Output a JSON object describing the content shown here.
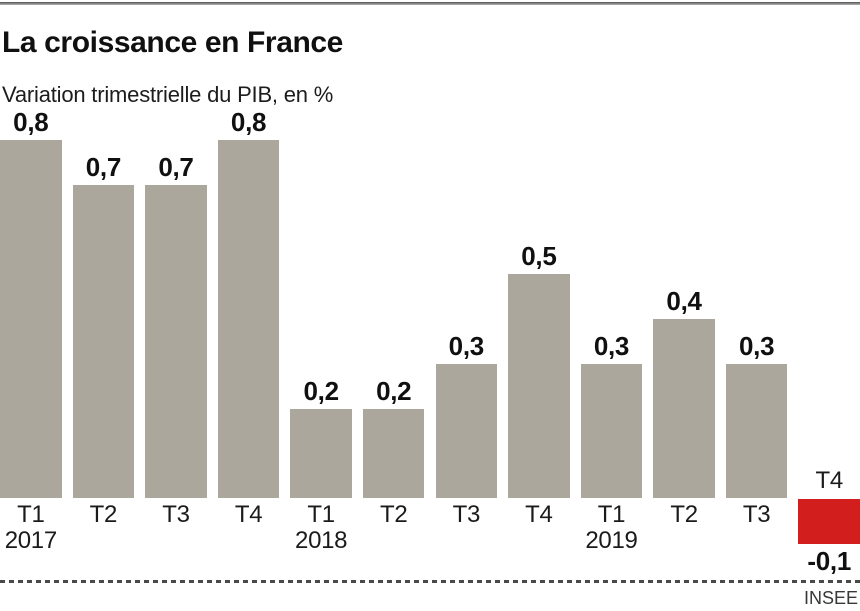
{
  "header": {
    "title": "La croissance en France",
    "subtitle": "Variation trimestrielle du PIB, en %"
  },
  "source_label": "INSEE",
  "chart_data": {
    "type": "bar",
    "title": "La croissance en France",
    "subtitle": "Variation trimestrielle du PIB, en %",
    "source": "INSEE",
    "categories": [
      "T1 2017",
      "T2 2017",
      "T3 2017",
      "T4 2017",
      "T1 2018",
      "T2 2018",
      "T3 2018",
      "T4 2018",
      "T1 2019",
      "T2 2019",
      "T3 2019",
      "T4 2019"
    ],
    "quarter_labels": [
      "T1",
      "T2",
      "T3",
      "T4",
      "T1",
      "T2",
      "T3",
      "T4",
      "T1",
      "T2",
      "T3",
      "T4"
    ],
    "year_markers": [
      {
        "index": 0,
        "label": "2017"
      },
      {
        "index": 4,
        "label": "2018"
      },
      {
        "index": 8,
        "label": "2019"
      }
    ],
    "values": [
      0.8,
      0.7,
      0.7,
      0.8,
      0.2,
      0.2,
      0.3,
      0.5,
      0.3,
      0.4,
      0.3,
      -0.1
    ],
    "value_labels": [
      "0,8",
      "0,7",
      "0,7",
      "0,8",
      "0,2",
      "0,2",
      "0,3",
      "0,5",
      "0,3",
      "0,4",
      "0,3",
      "-0,1"
    ],
    "ylim": [
      -0.2,
      0.9
    ],
    "grid": false,
    "legend": false,
    "bar_color": "#aba79d",
    "negative_bar_color": "#d31e1e",
    "unit": "%"
  }
}
